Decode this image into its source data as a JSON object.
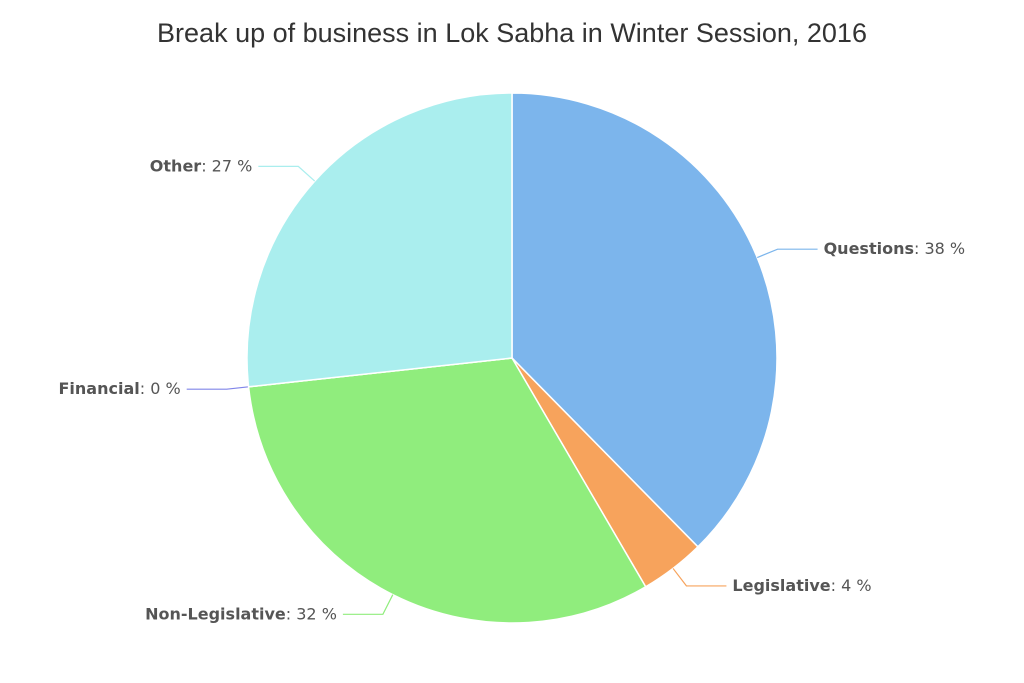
{
  "chart_data": {
    "type": "pie",
    "title": "Break up of business in Lok Sabha in Winter Session, 2016",
    "categories": [
      "Questions",
      "Legislative",
      "Non-Legislative",
      "Financial",
      "Other"
    ],
    "values": [
      38,
      4,
      32,
      0,
      27
    ],
    "value_labels": [
      ": 38 %",
      ": 4 %",
      ": 32 %",
      ": 0 %",
      ": 27 %"
    ],
    "colors": [
      "#7cb5ec",
      "#f7a35c",
      "#90ed7d",
      "#8085e9",
      "#aaeeee"
    ]
  }
}
